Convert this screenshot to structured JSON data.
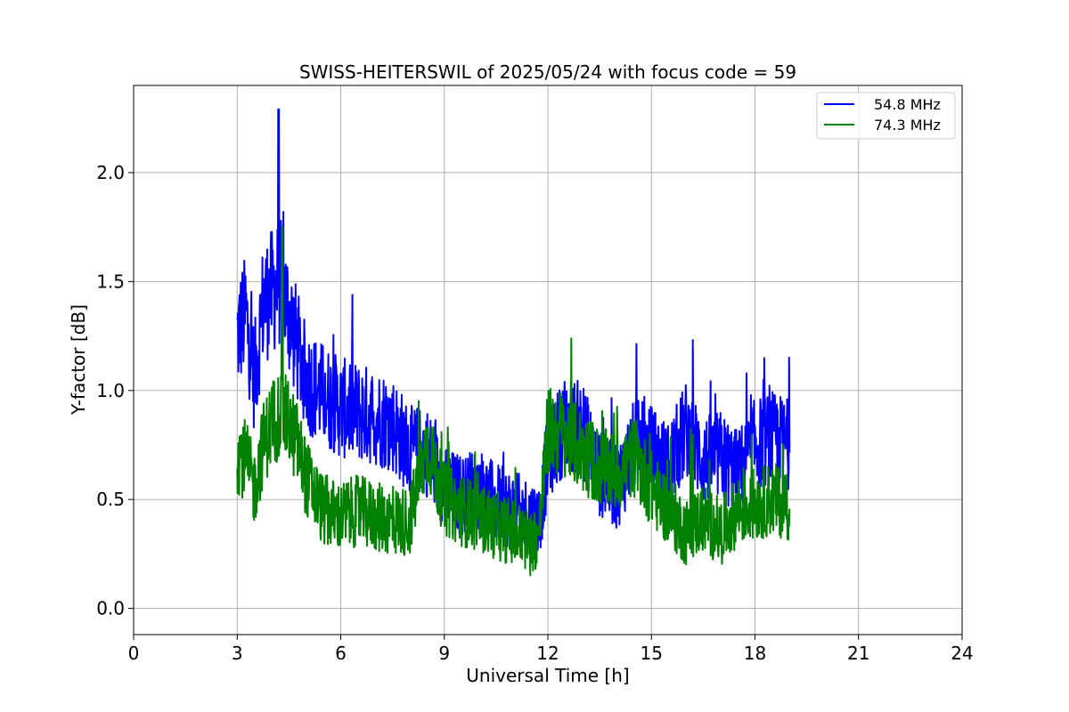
{
  "chart_data": {
    "type": "line",
    "title": "SWISS-HEITERSWIL of 2025/05/24 with focus code = 59",
    "xlabel": "Universal Time [h]",
    "ylabel": "Y-factor [dB]",
    "xlim": [
      0,
      24
    ],
    "ylim": [
      -0.12,
      2.4
    ],
    "xticks": [
      0,
      3,
      6,
      9,
      12,
      15,
      18,
      21,
      24
    ],
    "yticks": [
      0.0,
      0.5,
      1.0,
      1.5,
      2.0
    ],
    "xtick_labels": [
      "0",
      "3",
      "6",
      "9",
      "12",
      "15",
      "18",
      "21",
      "24"
    ],
    "ytick_labels": [
      "0.0",
      "0.5",
      "1.0",
      "1.5",
      "2.0"
    ],
    "grid": true,
    "legend_position": "top-right",
    "series": [
      {
        "name": "54.8 MHz",
        "color": "#0000ff",
        "x": [
          3.0,
          3.25,
          3.5,
          3.75,
          4.0,
          4.25,
          4.5,
          4.75,
          5.0,
          5.5,
          6.0,
          6.5,
          7.0,
          7.5,
          8.0,
          8.5,
          9.0,
          9.5,
          10.0,
          10.5,
          11.0,
          11.5,
          11.75,
          12.0,
          12.5,
          13.0,
          13.5,
          14.0,
          14.5,
          15.0,
          15.5,
          16.0,
          16.5,
          17.0,
          17.5,
          18.0,
          18.5,
          19.0
        ],
        "y": [
          1.25,
          1.35,
          1.05,
          1.4,
          1.45,
          1.5,
          1.35,
          1.2,
          1.05,
          0.98,
          0.92,
          0.9,
          0.88,
          0.85,
          0.72,
          0.72,
          0.55,
          0.52,
          0.55,
          0.48,
          0.45,
          0.42,
          0.4,
          0.7,
          0.85,
          0.82,
          0.62,
          0.55,
          0.75,
          0.72,
          0.65,
          0.82,
          0.68,
          0.7,
          0.62,
          0.75,
          0.78,
          0.75
        ],
        "peak_max": 2.29,
        "peak_max_x": 4.2
      },
      {
        "name": "74.3 MHz",
        "color": "#008000",
        "x": [
          3.0,
          3.25,
          3.5,
          3.75,
          4.0,
          4.25,
          4.5,
          4.75,
          5.0,
          5.5,
          6.0,
          6.5,
          7.0,
          7.5,
          8.0,
          8.5,
          9.0,
          9.5,
          10.0,
          10.5,
          11.0,
          11.5,
          11.75,
          12.0,
          12.5,
          13.0,
          13.5,
          14.0,
          14.5,
          15.0,
          15.5,
          16.0,
          16.5,
          17.0,
          17.5,
          18.0,
          18.5,
          19.0
        ],
        "y": [
          0.72,
          0.68,
          0.55,
          0.75,
          0.85,
          0.9,
          0.85,
          0.75,
          0.6,
          0.45,
          0.42,
          0.45,
          0.42,
          0.4,
          0.4,
          0.75,
          0.5,
          0.45,
          0.42,
          0.38,
          0.35,
          0.3,
          0.35,
          0.82,
          0.8,
          0.72,
          0.65,
          0.62,
          0.7,
          0.55,
          0.45,
          0.35,
          0.42,
          0.35,
          0.45,
          0.48,
          0.5,
          0.48
        ],
        "peak_max": 1.75,
        "peak_max_x": 4.3
      }
    ]
  }
}
